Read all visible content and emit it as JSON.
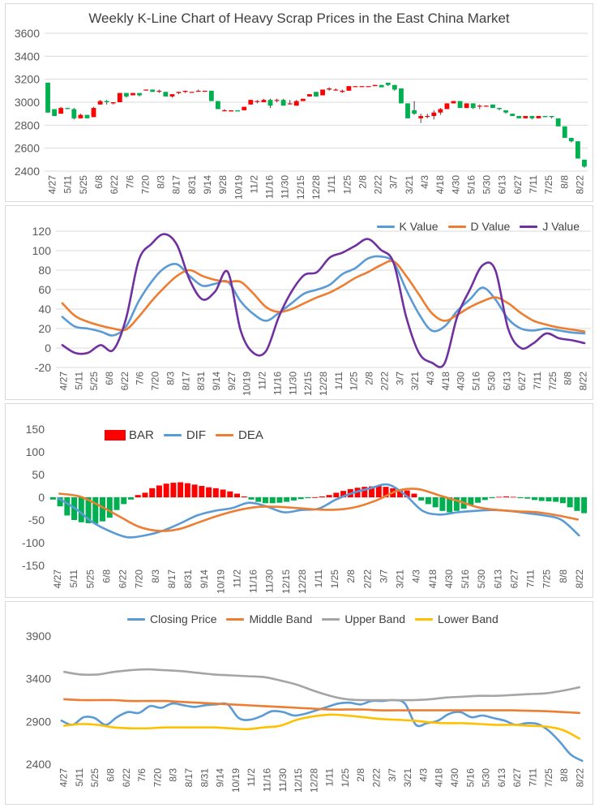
{
  "chart_data": [
    {
      "id": "kline",
      "type": "candlestick",
      "title": "Weekly K-Line Chart of Heavy Scrap Prices in the East China Market",
      "x_tick_labels": [
        "4/27",
        "5/11",
        "5/25",
        "6/8",
        "6/22",
        "7/6",
        "7/20",
        "8/3",
        "8/17",
        "8/31",
        "9/14",
        "9/28",
        "10/19",
        "11/2",
        "11/16",
        "11/30",
        "12/15",
        "12/28",
        "1/11",
        "1/25",
        "2/8",
        "2/22",
        "3/7",
        "3/21",
        "4/3",
        "4/18",
        "4/30",
        "5/16",
        "5/30",
        "6/13",
        "6/27",
        "7/11",
        "7/25",
        "8/8",
        "8/22"
      ],
      "ylim": [
        2400,
        3600
      ],
      "yticks": [
        2400,
        2600,
        2800,
        3000,
        3200,
        3400,
        3600
      ],
      "up_color": "#ff0000",
      "down_color": "#00b050",
      "candles": [
        {
          "o": 3170,
          "h": 3170,
          "l": 2910,
          "c": 2910
        },
        {
          "o": 2940,
          "h": 2940,
          "l": 2880,
          "c": 2880
        },
        {
          "o": 2900,
          "h": 2960,
          "l": 2900,
          "c": 2950
        },
        {
          "o": 2950,
          "h": 2950,
          "l": 2940,
          "c": 2940
        },
        {
          "o": 2940,
          "h": 2950,
          "l": 2850,
          "c": 2860
        },
        {
          "o": 2860,
          "h": 2900,
          "l": 2860,
          "c": 2890
        },
        {
          "o": 2890,
          "h": 2890,
          "l": 2860,
          "c": 2860
        },
        {
          "o": 2870,
          "h": 2960,
          "l": 2870,
          "c": 2950
        },
        {
          "o": 2980,
          "h": 3020,
          "l": 2980,
          "c": 3010
        },
        {
          "o": 3010,
          "h": 3020,
          "l": 2980,
          "c": 3000
        },
        {
          "o": 2990,
          "h": 3000,
          "l": 2980,
          "c": 3000
        },
        {
          "o": 3000,
          "h": 3080,
          "l": 3000,
          "c": 3080
        },
        {
          "o": 3080,
          "h": 3080,
          "l": 3040,
          "c": 3050
        },
        {
          "o": 3060,
          "h": 3080,
          "l": 3060,
          "c": 3080
        },
        {
          "o": 3080,
          "h": 3080,
          "l": 3050,
          "c": 3060
        },
        {
          "o": 3110,
          "h": 3110,
          "l": 3100,
          "c": 3110
        },
        {
          "o": 3110,
          "h": 3110,
          "l": 3090,
          "c": 3090
        },
        {
          "o": 3100,
          "h": 3110,
          "l": 3080,
          "c": 3100
        },
        {
          "o": 3090,
          "h": 3090,
          "l": 3050,
          "c": 3050
        },
        {
          "o": 3050,
          "h": 3070,
          "l": 3040,
          "c": 3070
        },
        {
          "o": 3080,
          "h": 3090,
          "l": 3070,
          "c": 3090
        },
        {
          "o": 3090,
          "h": 3100,
          "l": 3080,
          "c": 3100
        },
        {
          "o": 3090,
          "h": 3090,
          "l": 3090,
          "c": 3090
        },
        {
          "o": 3100,
          "h": 3110,
          "l": 3100,
          "c": 3100
        },
        {
          "o": 3100,
          "h": 3100,
          "l": 3090,
          "c": 3100
        },
        {
          "o": 3100,
          "h": 3100,
          "l": 3010,
          "c": 3010
        },
        {
          "o": 3010,
          "h": 3010,
          "l": 2940,
          "c": 2940
        },
        {
          "o": 2930,
          "h": 2940,
          "l": 2920,
          "c": 2930
        },
        {
          "o": 2920,
          "h": 2930,
          "l": 2920,
          "c": 2930
        },
        {
          "o": 2930,
          "h": 2930,
          "l": 2920,
          "c": 2920
        },
        {
          "o": 2930,
          "h": 2960,
          "l": 2930,
          "c": 2960
        },
        {
          "o": 2980,
          "h": 3020,
          "l": 2980,
          "c": 3020
        },
        {
          "o": 3010,
          "h": 3020,
          "l": 2990,
          "c": 3010
        },
        {
          "o": 3000,
          "h": 3030,
          "l": 3000,
          "c": 3020
        },
        {
          "o": 3020,
          "h": 3030,
          "l": 2950,
          "c": 2970
        },
        {
          "o": 3020,
          "h": 3030,
          "l": 3000,
          "c": 3020
        },
        {
          "o": 3020,
          "h": 3030,
          "l": 2970,
          "c": 2970
        },
        {
          "o": 2990,
          "h": 3020,
          "l": 2980,
          "c": 2990
        },
        {
          "o": 2970,
          "h": 3020,
          "l": 2970,
          "c": 3010
        },
        {
          "o": 3010,
          "h": 3030,
          "l": 3010,
          "c": 3030
        },
        {
          "o": 3050,
          "h": 3070,
          "l": 3050,
          "c": 3070
        },
        {
          "o": 3090,
          "h": 3090,
          "l": 3050,
          "c": 3050
        },
        {
          "o": 3060,
          "h": 3110,
          "l": 3060,
          "c": 3110
        },
        {
          "o": 3110,
          "h": 3130,
          "l": 3100,
          "c": 3120
        },
        {
          "o": 3110,
          "h": 3120,
          "l": 3100,
          "c": 3110
        },
        {
          "o": 3090,
          "h": 3110,
          "l": 3080,
          "c": 3100
        },
        {
          "o": 3100,
          "h": 3140,
          "l": 3100,
          "c": 3140
        },
        {
          "o": 3140,
          "h": 3140,
          "l": 3140,
          "c": 3140
        },
        {
          "o": 3140,
          "h": 3140,
          "l": 3140,
          "c": 3140
        },
        {
          "o": 3140,
          "h": 3140,
          "l": 3140,
          "c": 3140
        },
        {
          "o": 3140,
          "h": 3150,
          "l": 3140,
          "c": 3150
        },
        {
          "o": 3150,
          "h": 3150,
          "l": 3130,
          "c": 3130
        },
        {
          "o": 3170,
          "h": 3170,
          "l": 3140,
          "c": 3150
        },
        {
          "o": 3150,
          "h": 3150,
          "l": 3100,
          "c": 3110
        },
        {
          "o": 3120,
          "h": 3120,
          "l": 2990,
          "c": 2990
        },
        {
          "o": 2990,
          "h": 2990,
          "l": 2860,
          "c": 2860
        },
        {
          "o": 2930,
          "h": 3010,
          "l": 2890,
          "c": 2900
        },
        {
          "o": 2860,
          "h": 2900,
          "l": 2820,
          "c": 2880
        },
        {
          "o": 2880,
          "h": 2900,
          "l": 2860,
          "c": 2880
        },
        {
          "o": 2880,
          "h": 2930,
          "l": 2850,
          "c": 2910
        },
        {
          "o": 2910,
          "h": 2950,
          "l": 2890,
          "c": 2940
        },
        {
          "o": 2940,
          "h": 2990,
          "l": 2940,
          "c": 2990
        },
        {
          "o": 2990,
          "h": 3010,
          "l": 2990,
          "c": 3010
        },
        {
          "o": 3010,
          "h": 3010,
          "l": 2950,
          "c": 2950
        },
        {
          "o": 2950,
          "h": 2990,
          "l": 2950,
          "c": 2990
        },
        {
          "o": 2990,
          "h": 2990,
          "l": 2940,
          "c": 2950
        },
        {
          "o": 2970,
          "h": 2980,
          "l": 2940,
          "c": 2970
        },
        {
          "o": 2970,
          "h": 2970,
          "l": 2960,
          "c": 2970
        },
        {
          "o": 2980,
          "h": 2980,
          "l": 2950,
          "c": 2950
        },
        {
          "o": 2950,
          "h": 2950,
          "l": 2930,
          "c": 2940
        },
        {
          "o": 2930,
          "h": 2930,
          "l": 2900,
          "c": 2910
        },
        {
          "o": 2900,
          "h": 2900,
          "l": 2880,
          "c": 2880
        },
        {
          "o": 2880,
          "h": 2880,
          "l": 2860,
          "c": 2860
        },
        {
          "o": 2860,
          "h": 2880,
          "l": 2860,
          "c": 2880
        },
        {
          "o": 2880,
          "h": 2880,
          "l": 2850,
          "c": 2860
        },
        {
          "o": 2860,
          "h": 2880,
          "l": 2860,
          "c": 2880
        },
        {
          "o": 2880,
          "h": 2880,
          "l": 2870,
          "c": 2870
        },
        {
          "o": 2880,
          "h": 2880,
          "l": 2860,
          "c": 2870
        },
        {
          "o": 2860,
          "h": 2860,
          "l": 2790,
          "c": 2790
        },
        {
          "o": 2790,
          "h": 2790,
          "l": 2690,
          "c": 2690
        },
        {
          "o": 2690,
          "h": 2690,
          "l": 2650,
          "c": 2660
        },
        {
          "o": 2660,
          "h": 2660,
          "l": 2510,
          "c": 2510
        },
        {
          "o": 2500,
          "h": 2500,
          "l": 2430,
          "c": 2440
        }
      ]
    },
    {
      "id": "kdj",
      "type": "line",
      "title": "",
      "x_tick_labels": [
        "4/27",
        "5/11",
        "5/25",
        "6/8",
        "6/22",
        "7/6",
        "7/20",
        "8/3",
        "8/17",
        "8/31",
        "9/14",
        "9/27",
        "10/19",
        "11/2",
        "11/16",
        "11/30",
        "12/15",
        "12/28",
        "1/11",
        "1/25",
        "2/8",
        "2/22",
        "3/7",
        "3/21",
        "4/3",
        "4/18",
        "4/30",
        "5/16",
        "5/30",
        "6/13",
        "6/27",
        "7/11",
        "7/25",
        "8/8",
        "8/22"
      ],
      "ylim": [
        -20,
        120
      ],
      "yticks": [
        -20,
        0,
        20,
        40,
        60,
        80,
        100,
        120
      ],
      "series": [
        {
          "name": "K Value",
          "color": "#5b9bd5",
          "values": [
            32,
            22,
            20,
            17,
            13,
            22,
            48,
            68,
            82,
            86,
            74,
            64,
            66,
            68,
            48,
            35,
            28,
            36,
            46,
            56,
            60,
            65,
            76,
            82,
            92,
            94,
            88,
            60,
            35,
            18,
            22,
            38,
            50,
            62,
            50,
            30,
            20,
            18,
            20,
            18,
            16,
            15
          ]
        },
        {
          "name": "D Value",
          "color": "#ed7d31",
          "values": [
            46,
            33,
            27,
            23,
            20,
            19,
            32,
            48,
            62,
            74,
            80,
            74,
            70,
            68,
            68,
            56,
            42,
            37,
            40,
            46,
            52,
            57,
            64,
            72,
            78,
            85,
            89,
            74,
            55,
            36,
            28,
            34,
            42,
            48,
            52,
            46,
            36,
            28,
            24,
            21,
            19,
            17
          ]
        },
        {
          "name": "J Value",
          "color": "#7030a0",
          "values": [
            3,
            -5,
            -5,
            3,
            -2,
            30,
            90,
            107,
            117,
            106,
            70,
            50,
            58,
            78,
            18,
            -5,
            -3,
            32,
            58,
            75,
            78,
            93,
            98,
            105,
            112,
            101,
            88,
            32,
            -5,
            -15,
            -16,
            32,
            60,
            85,
            80,
            20,
            0,
            5,
            15,
            10,
            8,
            5
          ]
        }
      ]
    },
    {
      "id": "macd",
      "type": "bar+line",
      "title": "",
      "x_tick_labels": [
        "4/27",
        "5/11",
        "5/25",
        "6/8",
        "6/22",
        "7/20",
        "8/3",
        "8/17",
        "8/31",
        "9/14",
        "10/19",
        "11/2",
        "11/16",
        "11/30",
        "12/15",
        "12/28",
        "1/11",
        "1/25",
        "2/8",
        "2/22",
        "3/7",
        "3/21",
        "4/3",
        "4/18",
        "4/30",
        "5/16",
        "5/30",
        "6/13",
        "6/27",
        "7/11",
        "7/25",
        "8/8",
        "8/22"
      ],
      "ylim": [
        -150,
        150
      ],
      "yticks": [
        -150,
        -100,
        -50,
        0,
        50,
        100,
        150
      ],
      "bar": {
        "name": "BAR",
        "up_color": "#ff0000",
        "down_color": "#00b050",
        "values": [
          -5,
          -20,
          -40,
          -50,
          -55,
          -57,
          -58,
          -53,
          -45,
          -28,
          -15,
          -5,
          5,
          10,
          20,
          26,
          30,
          32,
          33,
          31,
          28,
          25,
          22,
          20,
          17,
          13,
          8,
          2,
          -5,
          -10,
          -13,
          -13,
          -12,
          -10,
          -7,
          -4,
          -2,
          0,
          2,
          5,
          10,
          14,
          18,
          21,
          23,
          24,
          25,
          23,
          20,
          17,
          15,
          8,
          -7,
          -15,
          -22,
          -30,
          -33,
          -30,
          -25,
          -18,
          -12,
          -6,
          -2,
          1,
          2,
          1,
          -2,
          -3,
          -6,
          -8,
          -9,
          -10,
          -13,
          -22,
          -30,
          -35
        ]
      },
      "series": [
        {
          "name": "DIF",
          "color": "#5b9bd5",
          "values": [
            -2,
            -25,
            -55,
            -75,
            -88,
            -84,
            -74,
            -58,
            -40,
            -30,
            -24,
            -12,
            -20,
            -33,
            -28,
            -25,
            -5,
            10,
            20,
            28,
            5,
            -30,
            -38,
            -33,
            -30,
            -28,
            -30,
            -35,
            -40,
            -50,
            -84
          ]
        },
        {
          "name": "DEA",
          "color": "#ed7d31",
          "values": [
            8,
            2,
            -18,
            -42,
            -65,
            -74,
            -70,
            -55,
            -40,
            -28,
            -21,
            -21,
            -24,
            -27,
            -27,
            -20,
            -5,
            15,
            18,
            5,
            -8,
            -22,
            -28,
            -31,
            -33,
            -40,
            -49
          ]
        }
      ]
    },
    {
      "id": "bollinger",
      "type": "line",
      "title": "",
      "x_tick_labels": [
        "4/27",
        "5/11",
        "5/25",
        "6/8",
        "6/22",
        "7/6",
        "7/20",
        "8/3",
        "8/17",
        "8/31",
        "9/14",
        "10/19",
        "11/2",
        "11/16",
        "11/30",
        "12/15",
        "12/28",
        "1/11",
        "1/25",
        "2/8",
        "2/22",
        "3/7",
        "3/21",
        "4/3",
        "4/18",
        "4/30",
        "5/16",
        "5/30",
        "6/13",
        "6/27",
        "7/11",
        "7/25",
        "8/8",
        "8/22"
      ],
      "ylim": [
        2400,
        3900
      ],
      "yticks": [
        2400,
        2900,
        3400,
        3900
      ],
      "series": [
        {
          "name": "Closing Price",
          "color": "#5b9bd5",
          "values": [
            2910,
            2860,
            2950,
            2940,
            2860,
            2950,
            3010,
            3000,
            3080,
            3060,
            3110,
            3090,
            3070,
            3090,
            3100,
            3100,
            2940,
            2920,
            2960,
            3020,
            3010,
            2970,
            2990,
            3030,
            3070,
            3110,
            3120,
            3100,
            3140,
            3140,
            3150,
            3110,
            2860,
            2880,
            2910,
            2990,
            3010,
            2950,
            2970,
            2940,
            2910,
            2860,
            2880,
            2870,
            2790,
            2660,
            2510,
            2440
          ]
        },
        {
          "name": "Middle Band",
          "color": "#ed7d31",
          "values": [
            3160,
            3150,
            3150,
            3150,
            3140,
            3140,
            3140,
            3130,
            3120,
            3110,
            3100,
            3090,
            3080,
            3070,
            3060,
            3050,
            3040,
            3040,
            3040,
            3030,
            3030,
            3030,
            3030,
            3030,
            3030,
            3030,
            3030,
            3030,
            3025,
            3020,
            3010,
            3000
          ]
        },
        {
          "name": "Upper Band",
          "color": "#a5a5a5",
          "values": [
            3480,
            3450,
            3450,
            3480,
            3500,
            3510,
            3500,
            3490,
            3470,
            3450,
            3440,
            3430,
            3420,
            3380,
            3330,
            3260,
            3200,
            3160,
            3150,
            3150,
            3150,
            3150,
            3160,
            3180,
            3190,
            3200,
            3200,
            3210,
            3220,
            3230,
            3260,
            3300
          ]
        },
        {
          "name": "Lower Band",
          "color": "#ffc000",
          "values": [
            2850,
            2870,
            2860,
            2830,
            2820,
            2820,
            2830,
            2830,
            2830,
            2830,
            2820,
            2810,
            2830,
            2850,
            2920,
            2960,
            2980,
            2970,
            2950,
            2930,
            2920,
            2910,
            2890,
            2880,
            2880,
            2870,
            2860,
            2860,
            2850,
            2840,
            2800,
            2700
          ]
        }
      ]
    }
  ]
}
